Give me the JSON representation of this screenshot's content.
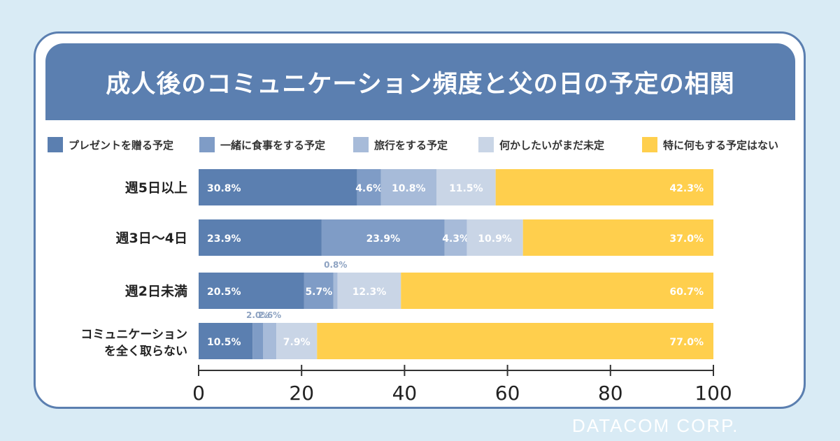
{
  "title": "成人後のコミュニケーション頻度と父の日の予定の相関",
  "watermark": "DATACOM CORP.",
  "colors": [
    "#5b7fb0",
    "#7f9cc6",
    "#a7bbd9",
    "#c9d5e6",
    "#ffcf4d"
  ],
  "chart_data": {
    "type": "bar",
    "orientation": "horizontal",
    "stacked": true,
    "title": "成人後のコミュニケーション頻度と父の日の予定の相関",
    "categories": [
      "週5日以上",
      "週3日〜4日",
      "週2日未満",
      "コミュニケーション\nを全く取らない"
    ],
    "category_lines": [
      [
        "週5日以上"
      ],
      [
        "週3日〜4日"
      ],
      [
        "週2日未満"
      ],
      [
        "コミュニケーション",
        "を全く取らない"
      ]
    ],
    "series": [
      {
        "name": "プレゼントを贈る予定",
        "values": [
          30.8,
          23.9,
          20.5,
          10.5
        ],
        "labels": [
          "30.8%",
          "23.9%",
          "20.5%",
          "10.5%"
        ]
      },
      {
        "name": "一緒に食事をする予定",
        "values": [
          4.6,
          23.9,
          5.7,
          2.0
        ],
        "labels": [
          "4.6%",
          "23.9%",
          "5.7%",
          "2.0%"
        ]
      },
      {
        "name": "旅行をする予定",
        "values": [
          10.8,
          4.3,
          0.8,
          2.6
        ],
        "labels": [
          "10.8%",
          "4.3%",
          "0.8%",
          "2.6%"
        ]
      },
      {
        "name": "何かしたいがまだ未定",
        "values": [
          11.5,
          10.9,
          12.3,
          7.9
        ],
        "labels": [
          "11.5%",
          "10.9%",
          "12.3%",
          "7.9%"
        ]
      },
      {
        "name": "特に何もする予定はない",
        "values": [
          42.3,
          37.0,
          60.7,
          77.0
        ],
        "labels": [
          "42.3%",
          "37.0%",
          "60.7%",
          "77.0%"
        ]
      }
    ],
    "xlim": [
      0,
      100
    ],
    "xticks": [
      "0",
      "20",
      "40",
      "60",
      "80",
      "100"
    ],
    "legend": "top"
  }
}
